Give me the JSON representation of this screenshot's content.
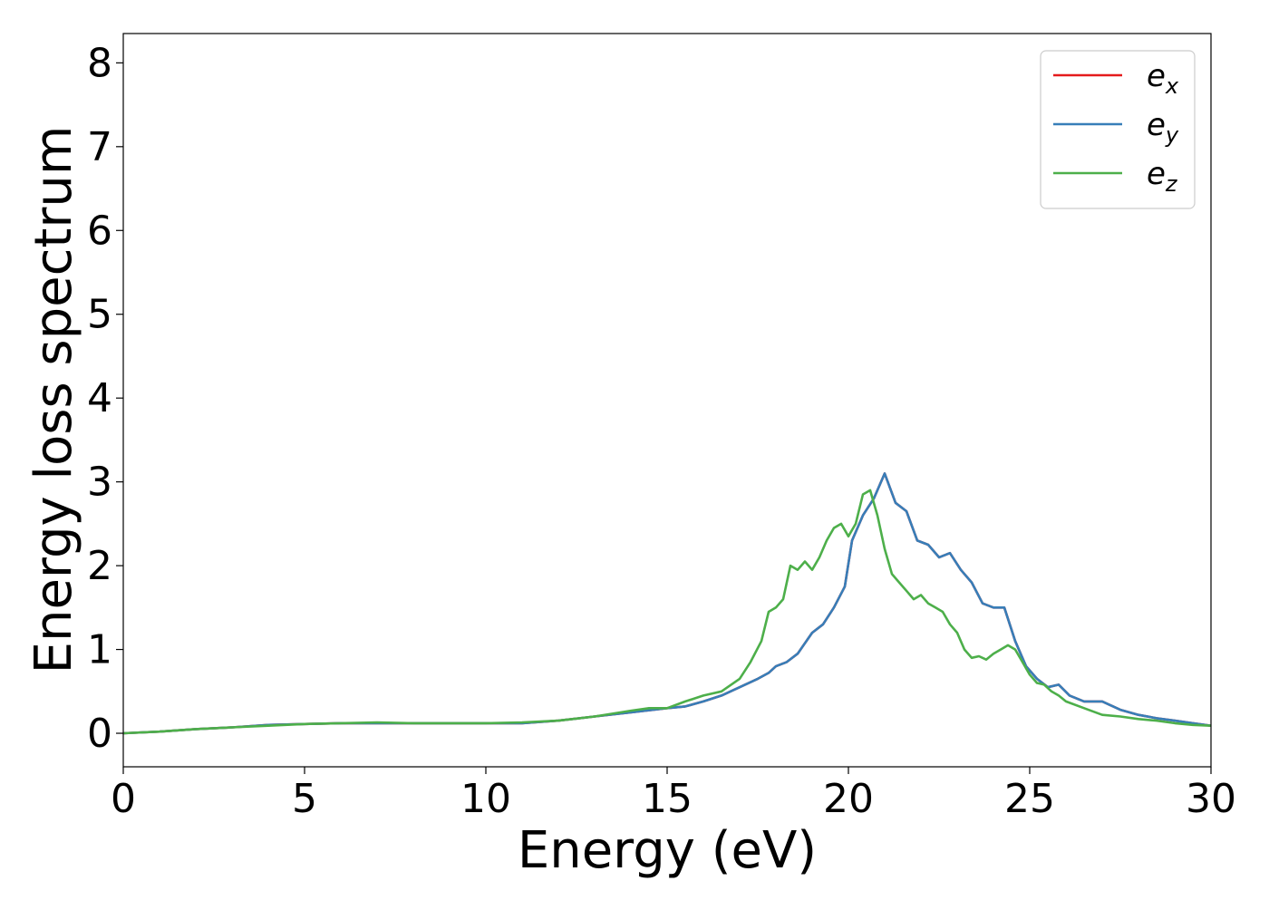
{
  "chart_data": {
    "type": "line",
    "title": "",
    "xlabel": "Energy (eV)",
    "ylabel": "Energy loss spectrum",
    "xlim": [
      0,
      30
    ],
    "ylim": [
      -0.4,
      8.35
    ],
    "xticks": [
      0,
      5,
      10,
      15,
      20,
      25,
      30
    ],
    "yticks": [
      0,
      1,
      2,
      3,
      4,
      5,
      6,
      7,
      8
    ],
    "grid": false,
    "legend_position": "top-right",
    "series": [
      {
        "name": "e_x",
        "legend_base": "e",
        "legend_sub": "x",
        "color": "#e41a1c",
        "x": [
          0,
          1,
          2,
          3,
          4,
          5,
          6,
          7,
          8,
          9,
          10,
          11,
          12,
          13,
          14,
          15,
          15.5,
          16,
          16.5,
          17,
          17.5,
          17.8,
          18,
          18.3,
          18.6,
          19,
          19.3,
          19.6,
          19.9,
          20.1,
          20.4,
          20.7,
          21,
          21.3,
          21.6,
          21.9,
          22.2,
          22.5,
          22.8,
          23.1,
          23.4,
          23.7,
          24,
          24.3,
          24.6,
          24.9,
          25.2,
          25.5,
          25.8,
          26.1,
          26.5,
          27,
          27.5,
          28,
          28.5,
          29,
          29.5,
          30
        ],
        "y": [
          0.0,
          0.02,
          0.05,
          0.07,
          0.1,
          0.11,
          0.12,
          0.12,
          0.12,
          0.12,
          0.12,
          0.12,
          0.15,
          0.2,
          0.25,
          0.3,
          0.32,
          0.38,
          0.45,
          0.55,
          0.65,
          0.72,
          0.8,
          0.85,
          0.95,
          1.2,
          1.3,
          1.5,
          1.75,
          2.3,
          2.6,
          2.8,
          3.1,
          2.75,
          2.65,
          2.3,
          2.25,
          2.1,
          2.15,
          1.95,
          1.8,
          1.55,
          1.5,
          1.5,
          1.1,
          0.8,
          0.65,
          0.55,
          0.58,
          0.45,
          0.38,
          0.38,
          0.28,
          0.22,
          0.18,
          0.15,
          0.12,
          0.09
        ]
      },
      {
        "name": "e_y",
        "legend_base": "e",
        "legend_sub": "y",
        "color": "#377eb8",
        "x": [
          0,
          1,
          2,
          3,
          4,
          5,
          6,
          7,
          8,
          9,
          10,
          11,
          12,
          13,
          14,
          15,
          15.5,
          16,
          16.5,
          17,
          17.5,
          17.8,
          18,
          18.3,
          18.6,
          19,
          19.3,
          19.6,
          19.9,
          20.1,
          20.4,
          20.7,
          21,
          21.3,
          21.6,
          21.9,
          22.2,
          22.5,
          22.8,
          23.1,
          23.4,
          23.7,
          24,
          24.3,
          24.6,
          24.9,
          25.2,
          25.5,
          25.8,
          26.1,
          26.5,
          27,
          27.5,
          28,
          28.5,
          29,
          29.5,
          30
        ],
        "y": [
          0.0,
          0.02,
          0.05,
          0.07,
          0.1,
          0.11,
          0.12,
          0.12,
          0.12,
          0.12,
          0.12,
          0.12,
          0.15,
          0.2,
          0.25,
          0.3,
          0.32,
          0.38,
          0.45,
          0.55,
          0.65,
          0.72,
          0.8,
          0.85,
          0.95,
          1.2,
          1.3,
          1.5,
          1.75,
          2.3,
          2.6,
          2.8,
          3.1,
          2.75,
          2.65,
          2.3,
          2.25,
          2.1,
          2.15,
          1.95,
          1.8,
          1.55,
          1.5,
          1.5,
          1.1,
          0.8,
          0.65,
          0.55,
          0.58,
          0.45,
          0.38,
          0.38,
          0.28,
          0.22,
          0.18,
          0.15,
          0.12,
          0.09
        ]
      },
      {
        "name": "e_z",
        "legend_base": "e",
        "legend_sub": "z",
        "color": "#4daf4a",
        "x": [
          0,
          1,
          2,
          3,
          4,
          5,
          6,
          7,
          8,
          9,
          10,
          11,
          12,
          13,
          14,
          14.5,
          15,
          15.5,
          16,
          16.5,
          17,
          17.3,
          17.6,
          17.8,
          18,
          18.2,
          18.4,
          18.6,
          18.8,
          19,
          19.2,
          19.4,
          19.6,
          19.8,
          20,
          20.2,
          20.4,
          20.6,
          20.8,
          21,
          21.2,
          21.4,
          21.6,
          21.8,
          22,
          22.2,
          22.4,
          22.6,
          22.8,
          23,
          23.2,
          23.4,
          23.6,
          23.8,
          24,
          24.2,
          24.4,
          24.6,
          24.8,
          25,
          25.2,
          25.4,
          25.6,
          25.8,
          26,
          26.5,
          27,
          27.5,
          28,
          28.5,
          29,
          29.5,
          30
        ],
        "y": [
          0.0,
          0.02,
          0.05,
          0.07,
          0.09,
          0.11,
          0.12,
          0.13,
          0.12,
          0.12,
          0.12,
          0.13,
          0.15,
          0.2,
          0.27,
          0.3,
          0.3,
          0.38,
          0.45,
          0.5,
          0.65,
          0.85,
          1.1,
          1.45,
          1.5,
          1.6,
          2.0,
          1.95,
          2.05,
          1.95,
          2.1,
          2.3,
          2.45,
          2.5,
          2.35,
          2.5,
          2.85,
          2.9,
          2.6,
          2.2,
          1.9,
          1.8,
          1.7,
          1.6,
          1.65,
          1.55,
          1.5,
          1.45,
          1.3,
          1.2,
          1.0,
          0.9,
          0.92,
          0.88,
          0.95,
          1.0,
          1.05,
          1.0,
          0.85,
          0.7,
          0.6,
          0.58,
          0.5,
          0.45,
          0.38,
          0.3,
          0.22,
          0.2,
          0.17,
          0.15,
          0.12,
          0.1,
          0.09
        ]
      }
    ]
  }
}
